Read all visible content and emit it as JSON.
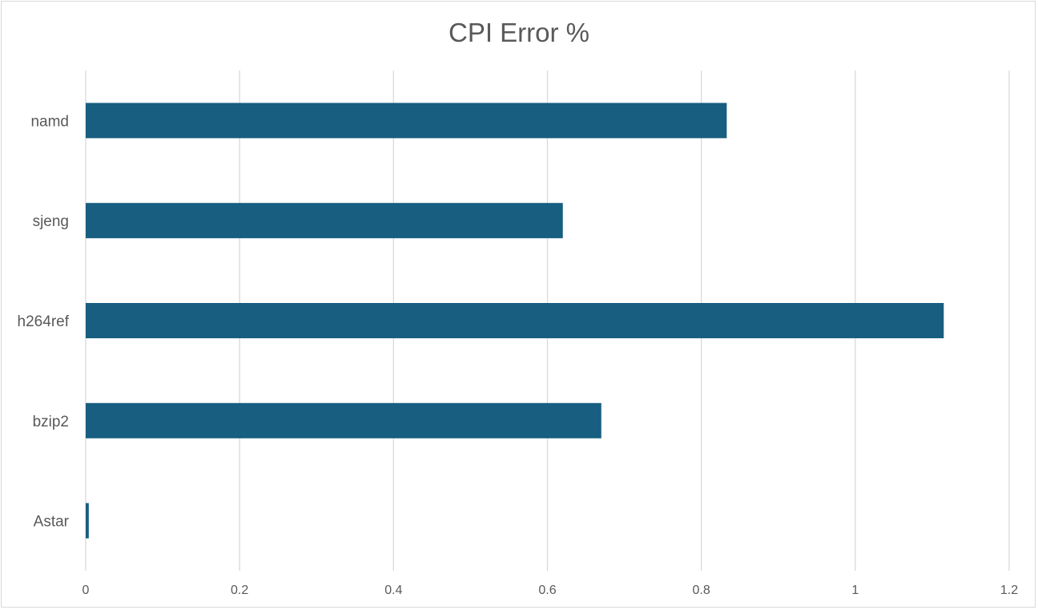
{
  "chart_data": {
    "type": "bar",
    "orientation": "horizontal",
    "title": "CPI Error %",
    "xlabel": "",
    "ylabel": "",
    "categories": [
      "namd",
      "sjeng",
      "h264ref",
      "bzip2",
      "Astar"
    ],
    "values": [
      0.833,
      0.62,
      1.115,
      0.67,
      0.004
    ],
    "xlim": [
      0,
      1.2
    ],
    "x_ticks": [
      "0",
      "0.2",
      "0.4",
      "0.6",
      "0.8",
      "1",
      "1.2"
    ],
    "grid": "vertical",
    "legend": "none",
    "colors": {
      "bar": "#175E80",
      "gridline": "#D9D9D9",
      "text": "#595959",
      "border": "#D9D9D9"
    }
  }
}
